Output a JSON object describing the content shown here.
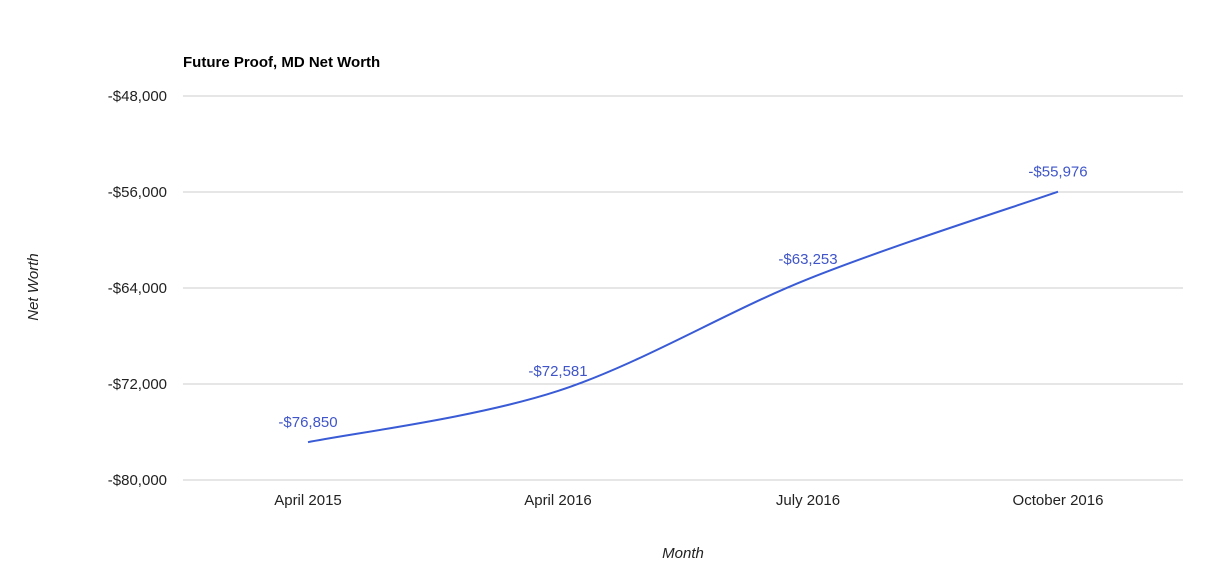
{
  "chart_data": {
    "type": "line",
    "title": "Future Proof, MD Net Worth",
    "xlabel": "Month",
    "ylabel": "Net Worth",
    "categories": [
      "April 2015",
      "April 2016",
      "July 2016",
      "October 2016"
    ],
    "series": [
      {
        "values": [
          -76850,
          -72581,
          -63253,
          -55976
        ],
        "data_labels": [
          "-$76,850",
          "-$72,581",
          "-$63,253",
          "-$55,976"
        ]
      }
    ],
    "ylim": [
      -80000,
      -48000
    ],
    "yticks": [
      -48000,
      -56000,
      -64000,
      -72000,
      -80000
    ],
    "ytick_labels": [
      "-$48,000",
      "-$56,000",
      "-$64,000",
      "-$72,000",
      "-$80,000"
    ],
    "grid": true,
    "legend": "none",
    "colors": {
      "series": "#3a5bd6",
      "data_label": "#3f55c9",
      "grid": "#cccccc"
    }
  }
}
